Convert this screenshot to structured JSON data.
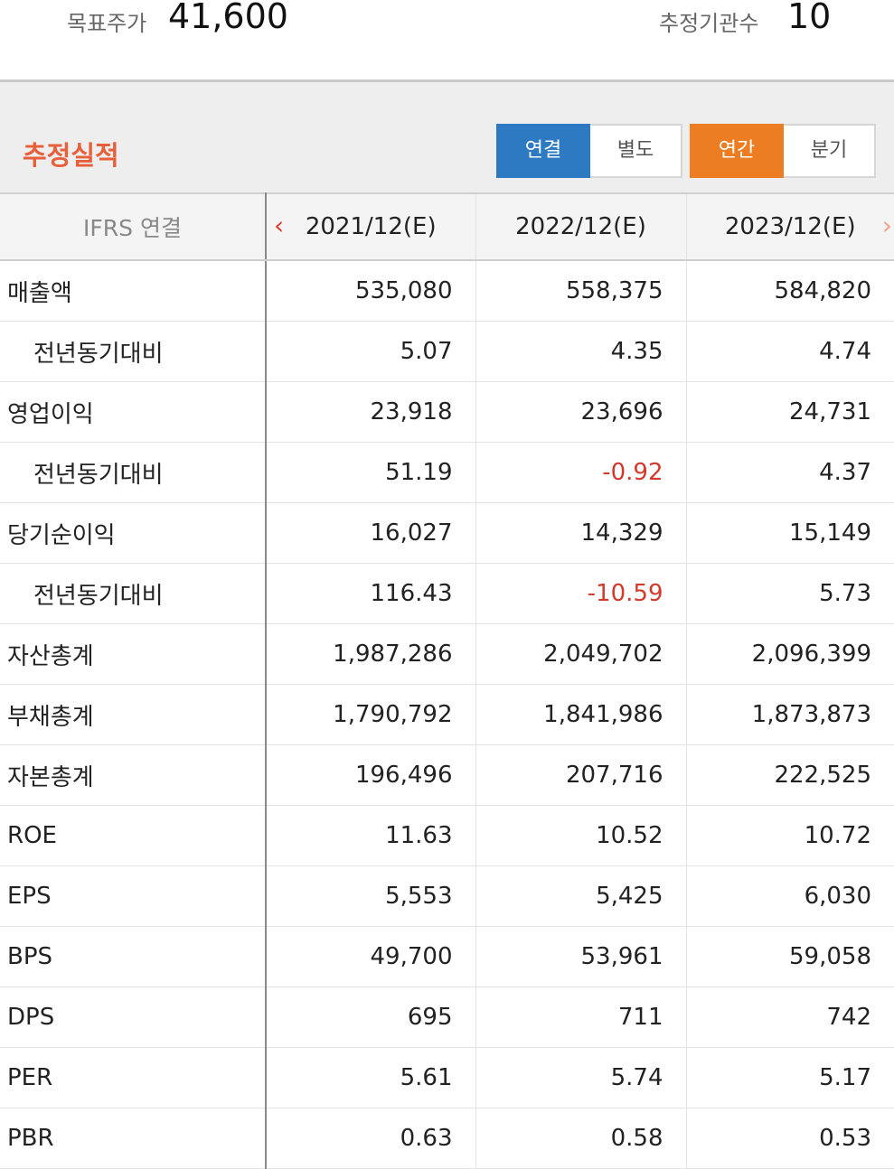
{
  "top": {
    "target_price_label": "목표주가",
    "target_price_value": "41,600",
    "institutions_label": "추정기관수",
    "institutions_value": "10"
  },
  "section": {
    "title": "추정실적",
    "toggle1": [
      "연결",
      "별도"
    ],
    "toggle1_selected": "연결",
    "toggle2": [
      "연간",
      "분기"
    ],
    "toggle2_selected": "연간",
    "accent_blue": "#2d7ac2",
    "accent_orange": "#ec7d22"
  },
  "table": {
    "header_label": "IFRS 연결",
    "prev_icon": "chevron-left-icon",
    "next_icon": "chevron-right-icon",
    "columns": [
      "2021/12(E)",
      "2022/12(E)",
      "2023/12(E)"
    ],
    "negative_color": "#d23a2c",
    "rows": [
      {
        "label": "매출액",
        "indent": false,
        "values": [
          "535,080",
          "558,375",
          "584,820"
        ]
      },
      {
        "label": "전년동기대비",
        "indent": true,
        "values": [
          "5.07",
          "4.35",
          "4.74"
        ]
      },
      {
        "label": "영업이익",
        "indent": false,
        "values": [
          "23,918",
          "23,696",
          "24,731"
        ]
      },
      {
        "label": "전년동기대비",
        "indent": true,
        "values": [
          "51.19",
          "-0.92",
          "4.37"
        ]
      },
      {
        "label": "당기순이익",
        "indent": false,
        "values": [
          "16,027",
          "14,329",
          "15,149"
        ]
      },
      {
        "label": "전년동기대비",
        "indent": true,
        "values": [
          "116.43",
          "-10.59",
          "5.73"
        ]
      },
      {
        "label": "자산총계",
        "indent": false,
        "values": [
          "1,987,286",
          "2,049,702",
          "2,096,399"
        ]
      },
      {
        "label": "부채총계",
        "indent": false,
        "values": [
          "1,790,792",
          "1,841,986",
          "1,873,873"
        ]
      },
      {
        "label": "자본총계",
        "indent": false,
        "values": [
          "196,496",
          "207,716",
          "222,525"
        ]
      },
      {
        "label": "ROE",
        "indent": false,
        "values": [
          "11.63",
          "10.52",
          "10.72"
        ]
      },
      {
        "label": "EPS",
        "indent": false,
        "values": [
          "5,553",
          "5,425",
          "6,030"
        ]
      },
      {
        "label": "BPS",
        "indent": false,
        "values": [
          "49,700",
          "53,961",
          "59,058"
        ]
      },
      {
        "label": "DPS",
        "indent": false,
        "values": [
          "695",
          "711",
          "742"
        ]
      },
      {
        "label": "PER",
        "indent": false,
        "values": [
          "5.61",
          "5.74",
          "5.17"
        ]
      },
      {
        "label": "PBR",
        "indent": false,
        "values": [
          "0.63",
          "0.58",
          "0.53"
        ]
      }
    ]
  }
}
